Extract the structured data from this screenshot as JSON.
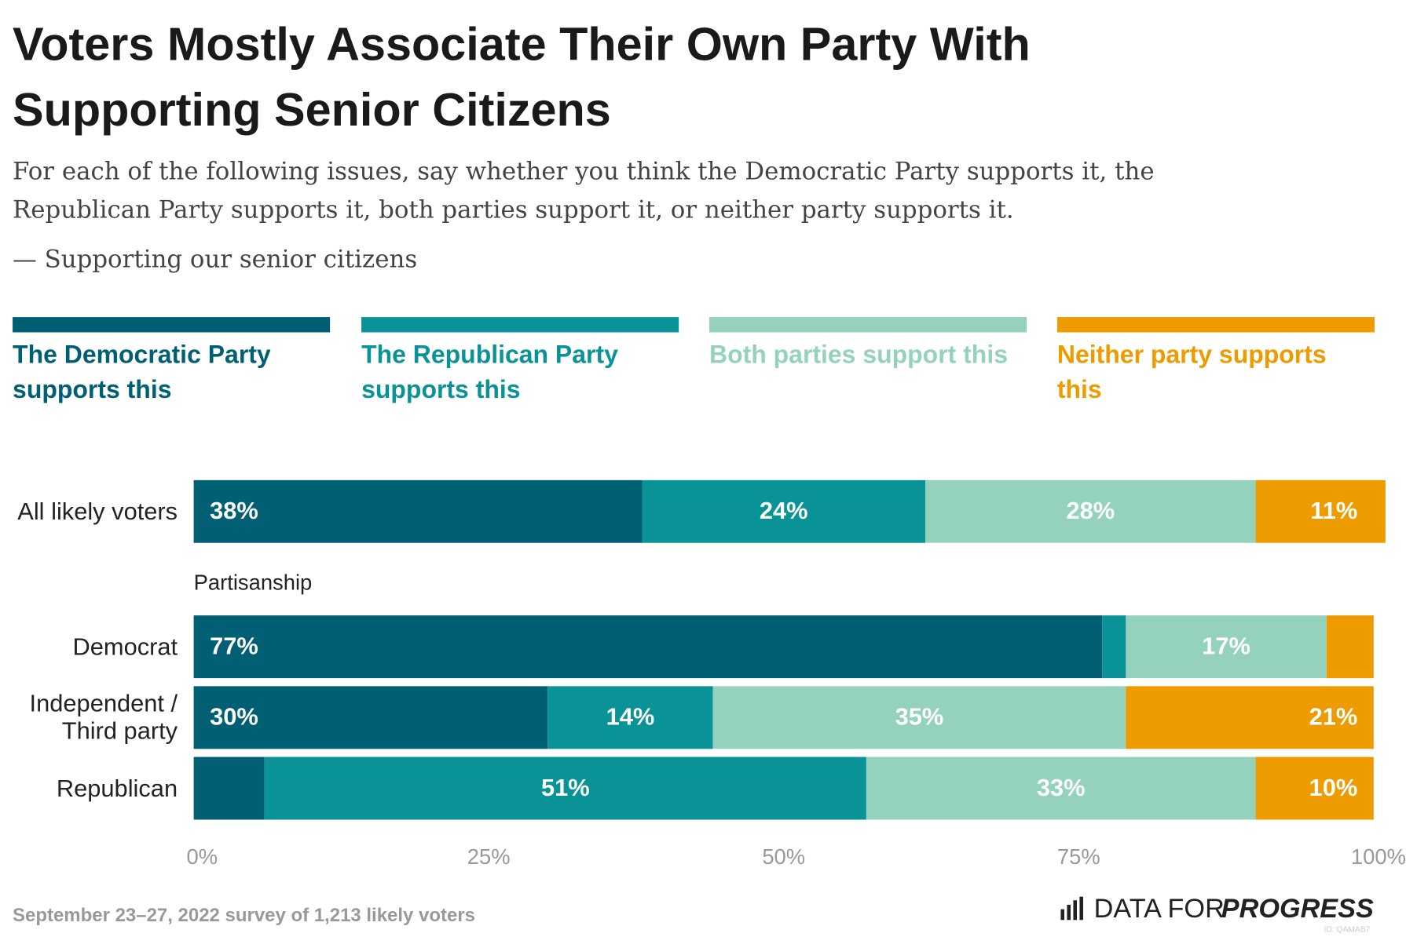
{
  "chart_data": {
    "type": "stacked-barh",
    "title": "Voters Mostly Associate Their Own Party With Supporting Senior Citizens",
    "subtitle": "For each of the following issues, say whether you think the Democratic Party supports it, the Republican Party supports it, both parties support it, or neither party supports it.",
    "question_item": "— Supporting our senior citizens",
    "group_label": "Partisanship",
    "categories": [
      "All likely voters",
      "Democrat",
      "Independent / Third party",
      "Republican"
    ],
    "series": [
      {
        "name": "The Democratic Party supports this",
        "color": "#005f73",
        "values": [
          38,
          77,
          30,
          6
        ],
        "value_labels": [
          "38%",
          "77%",
          "30%",
          null
        ]
      },
      {
        "name": "The Republican Party supports this",
        "color": "#0a9396",
        "values": [
          24,
          2,
          14,
          51
        ],
        "value_labels": [
          "24%",
          null,
          "14%",
          "51%"
        ]
      },
      {
        "name": "Both parties support this",
        "color": "#94d2bd",
        "values": [
          28,
          17,
          35,
          33
        ],
        "value_labels": [
          "28%",
          "17%",
          "35%",
          "33%"
        ]
      },
      {
        "name": "Neither party supports this",
        "color": "#ee9b00",
        "values": [
          11,
          4,
          21,
          10
        ],
        "value_labels": [
          "11%",
          null,
          "21%",
          "10%"
        ]
      }
    ],
    "xlim": [
      0,
      100
    ],
    "xticks": [
      {
        "value": 0,
        "label": "0%"
      },
      {
        "value": 25,
        "label": "25%"
      },
      {
        "value": 50,
        "label": "50%"
      },
      {
        "value": 75,
        "label": "75%"
      },
      {
        "value": 100,
        "label": "100%"
      }
    ],
    "note": "September 23–27, 2022 survey of 1,213 likely voters",
    "brand": [
      "DATA FOR",
      "PROGRESS"
    ],
    "id_code": "ID: QAMAB7"
  }
}
